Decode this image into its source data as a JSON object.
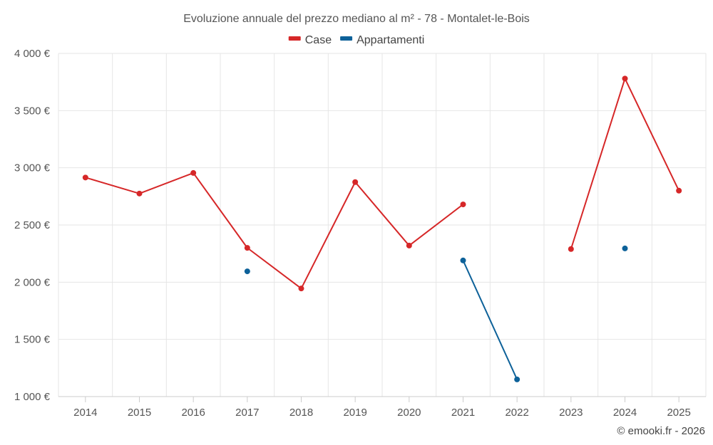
{
  "chart_data": {
    "type": "line",
    "title": "Evoluzione annuale del prezzo mediano al m² - 78 - Montalet-le-Bois",
    "categories": [
      "2014",
      "2015",
      "2016",
      "2017",
      "2018",
      "2019",
      "2020",
      "2021",
      "2022",
      "2023",
      "2024",
      "2025"
    ],
    "ylim": [
      1000,
      4000
    ],
    "yticks": [
      1000,
      1500,
      2000,
      2500,
      3000,
      3500,
      4000
    ],
    "ytick_labels": [
      "1 000 €",
      "1 500 €",
      "2 000 €",
      "2 500 €",
      "3 000 €",
      "3 500 €",
      "4 000 €"
    ],
    "xlabel": "",
    "ylabel": "",
    "grid": true,
    "legend_position": "top-center",
    "series": [
      {
        "name": "Case",
        "color": "#d62728",
        "values": [
          2915,
          2775,
          2955,
          2300,
          1945,
          2875,
          2320,
          2680,
          null,
          2290,
          3780,
          2800
        ]
      },
      {
        "name": "Appartamenti",
        "color": "#0d6199",
        "values": [
          null,
          null,
          null,
          2095,
          null,
          null,
          null,
          2190,
          1150,
          null,
          2295,
          null
        ]
      }
    ]
  },
  "credit": "© emooki.fr - 2026"
}
